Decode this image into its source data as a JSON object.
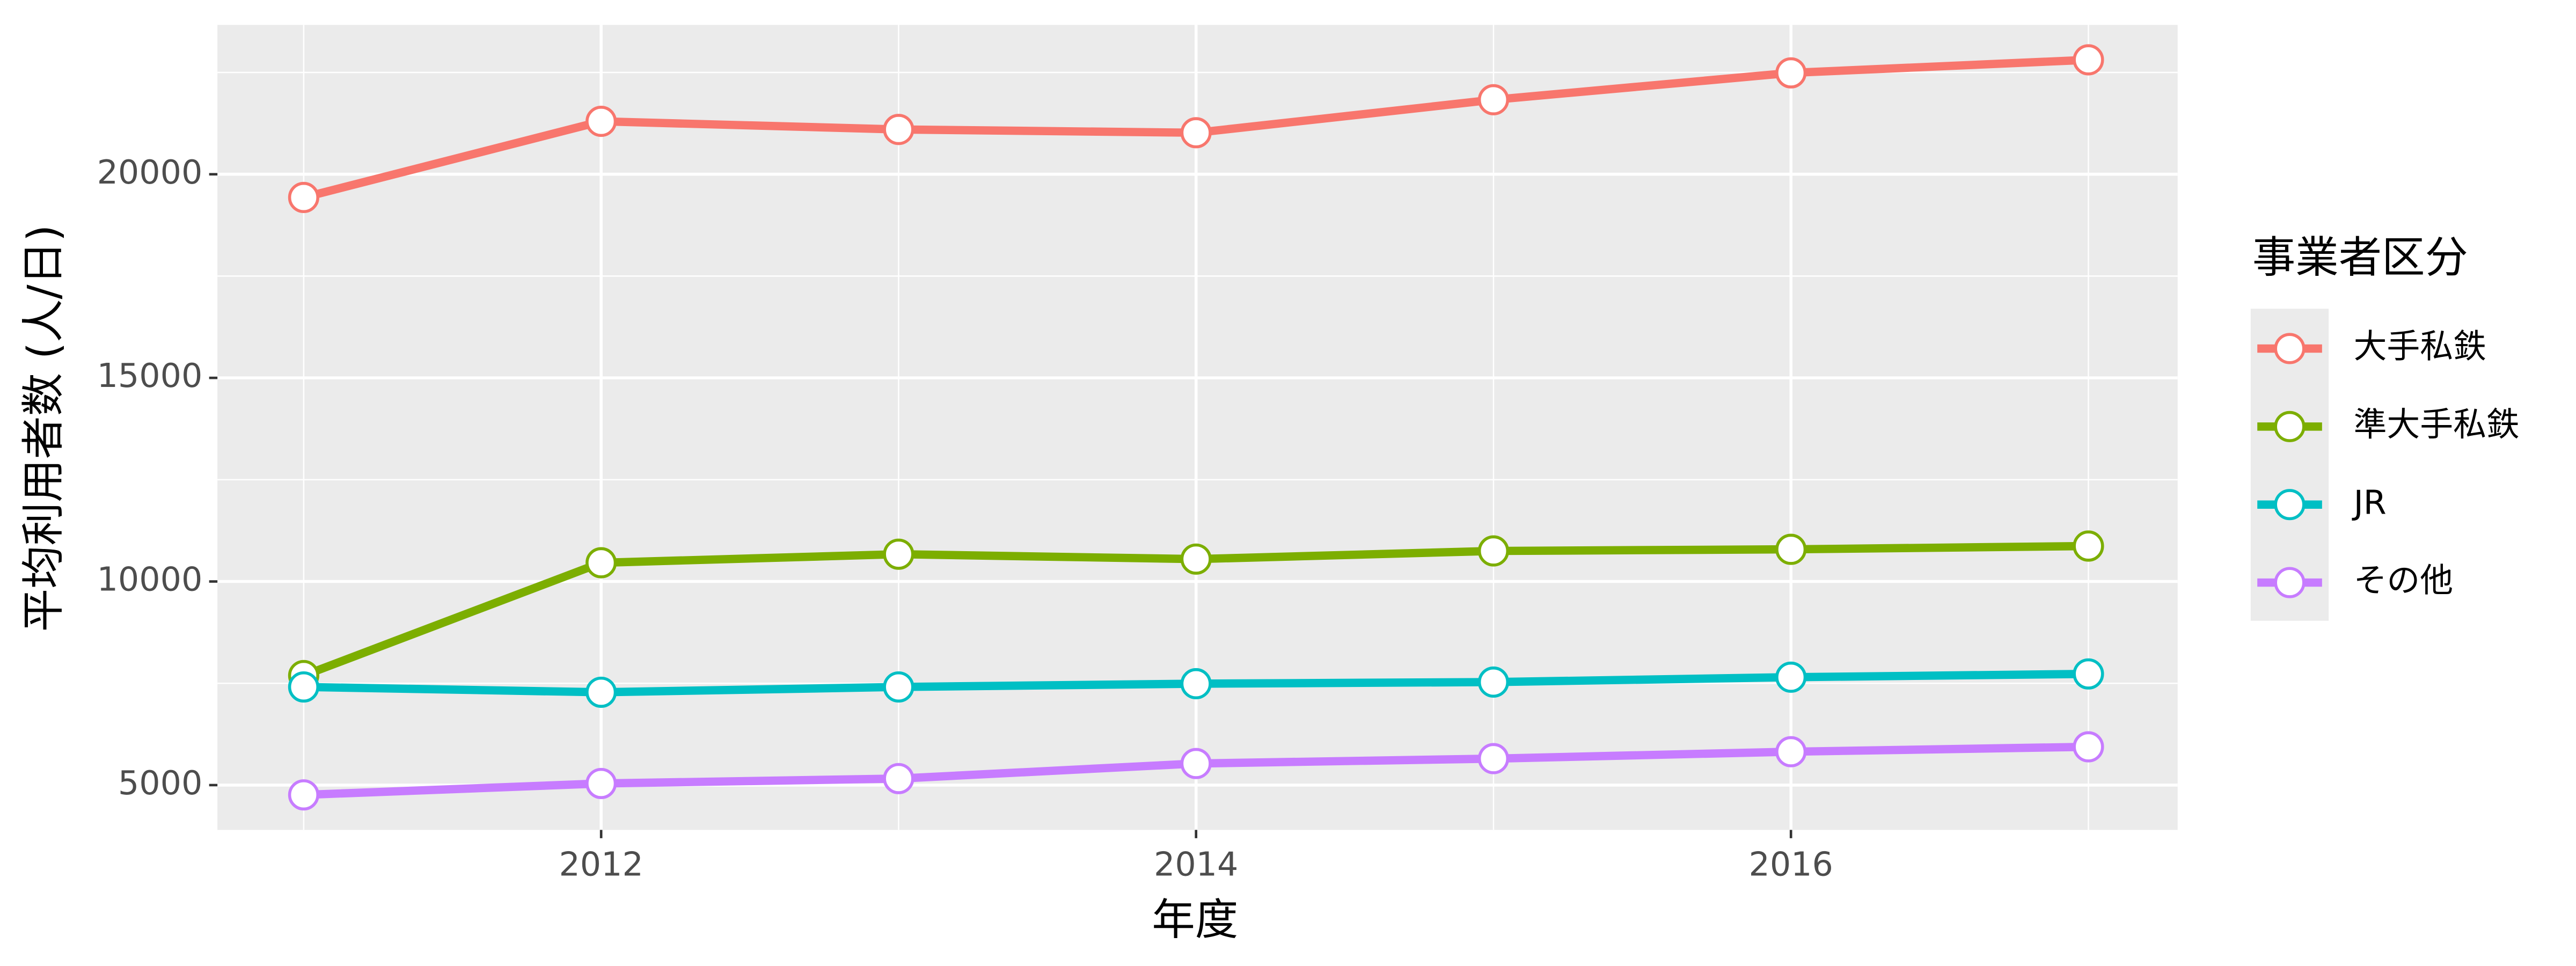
{
  "chart_data": {
    "type": "line",
    "x_label": "年度",
    "y_label": "平均利用者数 (人/日)",
    "legend_title": "事業者区分",
    "legend": "right",
    "grid": true,
    "x": [
      2011,
      2012,
      2013,
      2014,
      2015,
      2016,
      2017
    ],
    "xlim": [
      2010.71,
      2017.3
    ],
    "xticks": [
      2012,
      2014,
      2016
    ],
    "ylim": [
      3900,
      23668
    ],
    "yticks": [
      5000,
      10000,
      15000,
      20000
    ],
    "series": [
      {
        "name": "大手私鉄",
        "color": "#F8766D",
        "values": [
          19430,
          21300,
          21100,
          21020,
          21830,
          22490,
          22810
        ]
      },
      {
        "name": "準大手私鉄",
        "color": "#7CAE00",
        "values": [
          7690,
          10460,
          10670,
          10550,
          10750,
          10790,
          10870
        ]
      },
      {
        "name": "JR",
        "color": "#00BFC4",
        "values": [
          7410,
          7280,
          7410,
          7490,
          7530,
          7650,
          7730
        ]
      },
      {
        "name": "その他",
        "color": "#C77CFF",
        "values": [
          4760,
          5040,
          5160,
          5530,
          5650,
          5820,
          5940
        ]
      }
    ]
  }
}
